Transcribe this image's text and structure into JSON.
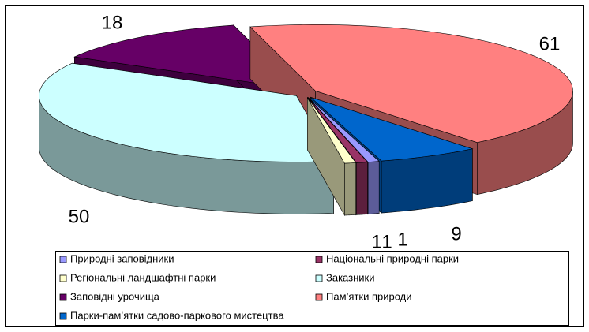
{
  "chart_data": {
    "type": "pie",
    "categories": [
      "Природні заповідники",
      "Національні природні парки",
      "Регіональні ландшафтні парки",
      "Заказники",
      "Заповідні урочища",
      "Пам’ятки природи",
      "Парки-пам’ятки садово-паркового мистецтва"
    ],
    "values": [
      1,
      1,
      1,
      50,
      18,
      61,
      9
    ],
    "colors": [
      "#9999ff",
      "#993366",
      "#ffffcc",
      "#ccffff",
      "#660066",
      "#ff8080",
      "#0066cc"
    ],
    "legend": "bottom"
  }
}
